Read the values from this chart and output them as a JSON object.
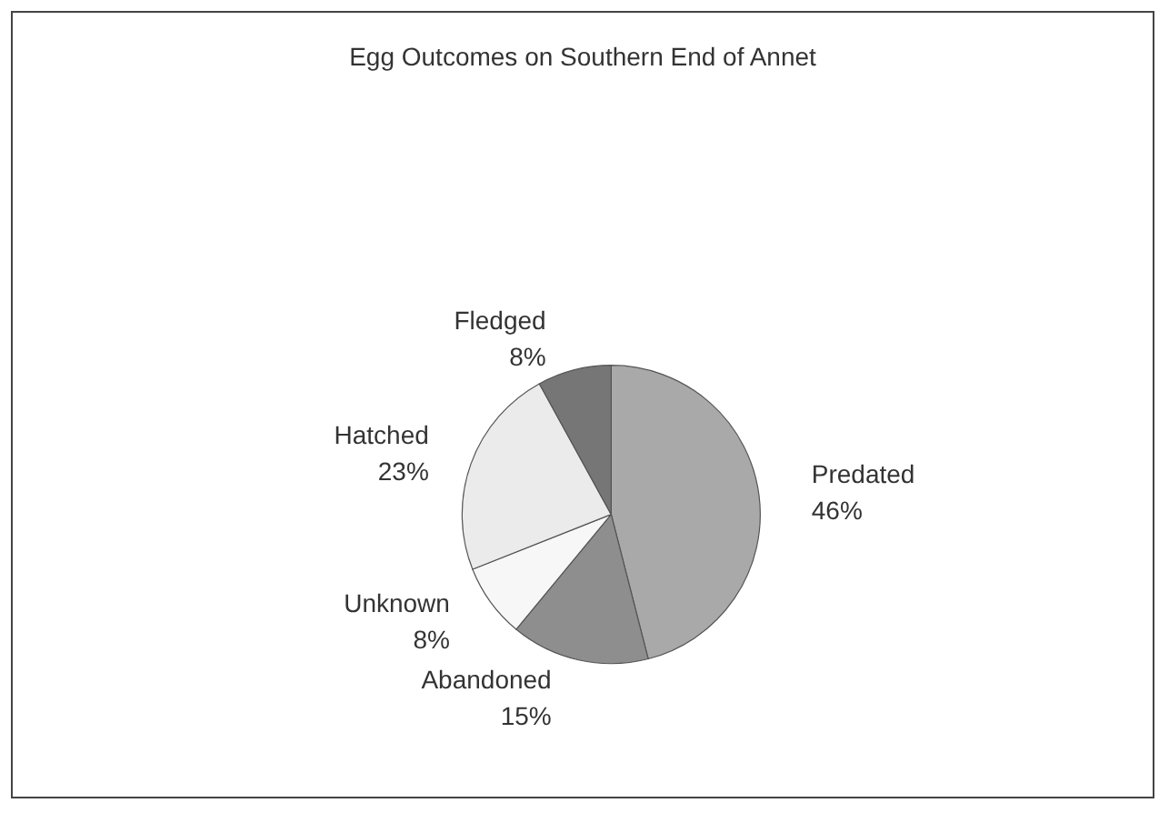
{
  "chart_data": {
    "type": "pie",
    "title": "Egg Outcomes on Southern End of Annet",
    "categories": [
      "Predated",
      "Abandoned",
      "Unknown",
      "Hatched",
      "Fledged"
    ],
    "values": [
      46,
      15,
      8,
      23,
      8
    ],
    "colors": [
      "#a9a9a9",
      "#8e8e8e",
      "#f7f7f7",
      "#ebebeb",
      "#767676"
    ],
    "value_labels": [
      "46%",
      "15%",
      "8%",
      "23%",
      "8%"
    ],
    "legend": false
  }
}
